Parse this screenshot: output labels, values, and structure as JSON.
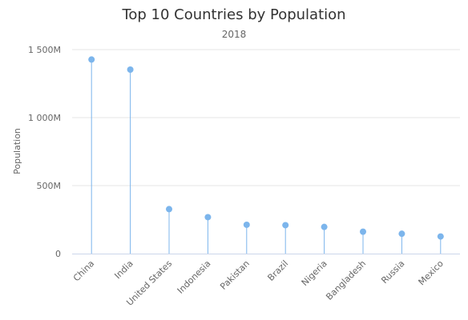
{
  "chart_data": {
    "type": "lollipop",
    "title": "Top 10 Countries by Population",
    "subtitle": "2018",
    "ylabel": "Population",
    "xlabel": "",
    "ylim": [
      0,
      1500
    ],
    "yticks": [
      {
        "value": 0,
        "label": "0"
      },
      {
        "value": 500,
        "label": "500M"
      },
      {
        "value": 1000,
        "label": "1 000M"
      },
      {
        "value": 1500,
        "label": "1 500M"
      }
    ],
    "grid": true,
    "legend": "none",
    "color": "#7cb5ec",
    "categories": [
      "China",
      "India",
      "United States",
      "Indonesia",
      "Pakistan",
      "Brazil",
      "Nigeria",
      "Bangladesh",
      "Russia",
      "Mexico"
    ],
    "values": [
      1427,
      1353,
      327,
      268,
      212,
      209,
      196,
      161,
      146,
      126
    ]
  }
}
